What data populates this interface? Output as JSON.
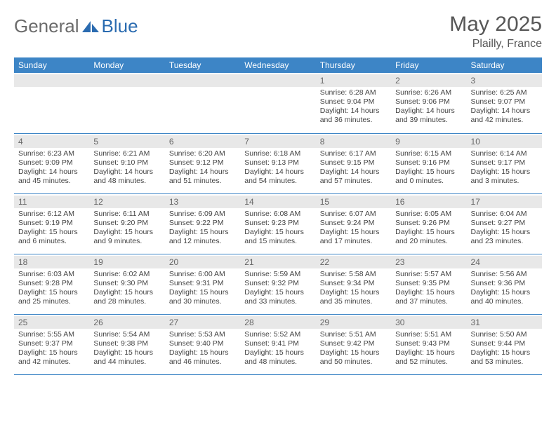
{
  "brand": {
    "part1": "General",
    "part2": "Blue"
  },
  "title": "May 2025",
  "location": "Plailly, France",
  "colors": {
    "header_bg": "#3d85c6",
    "header_fg": "#ffffff",
    "daynum_bg": "#e8e8e8",
    "daynum_fg": "#666666",
    "rule": "#3d85c6",
    "text": "#444444",
    "logo_gray": "#6b6b6b",
    "logo_blue": "#2a6bb0"
  },
  "weekdays": [
    "Sunday",
    "Monday",
    "Tuesday",
    "Wednesday",
    "Thursday",
    "Friday",
    "Saturday"
  ],
  "weeks": [
    [
      null,
      null,
      null,
      null,
      {
        "n": "1",
        "sr": "Sunrise: 6:28 AM",
        "ss": "Sunset: 9:04 PM",
        "d1": "Daylight: 14 hours",
        "d2": "and 36 minutes."
      },
      {
        "n": "2",
        "sr": "Sunrise: 6:26 AM",
        "ss": "Sunset: 9:06 PM",
        "d1": "Daylight: 14 hours",
        "d2": "and 39 minutes."
      },
      {
        "n": "3",
        "sr": "Sunrise: 6:25 AM",
        "ss": "Sunset: 9:07 PM",
        "d1": "Daylight: 14 hours",
        "d2": "and 42 minutes."
      }
    ],
    [
      {
        "n": "4",
        "sr": "Sunrise: 6:23 AM",
        "ss": "Sunset: 9:09 PM",
        "d1": "Daylight: 14 hours",
        "d2": "and 45 minutes."
      },
      {
        "n": "5",
        "sr": "Sunrise: 6:21 AM",
        "ss": "Sunset: 9:10 PM",
        "d1": "Daylight: 14 hours",
        "d2": "and 48 minutes."
      },
      {
        "n": "6",
        "sr": "Sunrise: 6:20 AM",
        "ss": "Sunset: 9:12 PM",
        "d1": "Daylight: 14 hours",
        "d2": "and 51 minutes."
      },
      {
        "n": "7",
        "sr": "Sunrise: 6:18 AM",
        "ss": "Sunset: 9:13 PM",
        "d1": "Daylight: 14 hours",
        "d2": "and 54 minutes."
      },
      {
        "n": "8",
        "sr": "Sunrise: 6:17 AM",
        "ss": "Sunset: 9:15 PM",
        "d1": "Daylight: 14 hours",
        "d2": "and 57 minutes."
      },
      {
        "n": "9",
        "sr": "Sunrise: 6:15 AM",
        "ss": "Sunset: 9:16 PM",
        "d1": "Daylight: 15 hours",
        "d2": "and 0 minutes."
      },
      {
        "n": "10",
        "sr": "Sunrise: 6:14 AM",
        "ss": "Sunset: 9:17 PM",
        "d1": "Daylight: 15 hours",
        "d2": "and 3 minutes."
      }
    ],
    [
      {
        "n": "11",
        "sr": "Sunrise: 6:12 AM",
        "ss": "Sunset: 9:19 PM",
        "d1": "Daylight: 15 hours",
        "d2": "and 6 minutes."
      },
      {
        "n": "12",
        "sr": "Sunrise: 6:11 AM",
        "ss": "Sunset: 9:20 PM",
        "d1": "Daylight: 15 hours",
        "d2": "and 9 minutes."
      },
      {
        "n": "13",
        "sr": "Sunrise: 6:09 AM",
        "ss": "Sunset: 9:22 PM",
        "d1": "Daylight: 15 hours",
        "d2": "and 12 minutes."
      },
      {
        "n": "14",
        "sr": "Sunrise: 6:08 AM",
        "ss": "Sunset: 9:23 PM",
        "d1": "Daylight: 15 hours",
        "d2": "and 15 minutes."
      },
      {
        "n": "15",
        "sr": "Sunrise: 6:07 AM",
        "ss": "Sunset: 9:24 PM",
        "d1": "Daylight: 15 hours",
        "d2": "and 17 minutes."
      },
      {
        "n": "16",
        "sr": "Sunrise: 6:05 AM",
        "ss": "Sunset: 9:26 PM",
        "d1": "Daylight: 15 hours",
        "d2": "and 20 minutes."
      },
      {
        "n": "17",
        "sr": "Sunrise: 6:04 AM",
        "ss": "Sunset: 9:27 PM",
        "d1": "Daylight: 15 hours",
        "d2": "and 23 minutes."
      }
    ],
    [
      {
        "n": "18",
        "sr": "Sunrise: 6:03 AM",
        "ss": "Sunset: 9:28 PM",
        "d1": "Daylight: 15 hours",
        "d2": "and 25 minutes."
      },
      {
        "n": "19",
        "sr": "Sunrise: 6:02 AM",
        "ss": "Sunset: 9:30 PM",
        "d1": "Daylight: 15 hours",
        "d2": "and 28 minutes."
      },
      {
        "n": "20",
        "sr": "Sunrise: 6:00 AM",
        "ss": "Sunset: 9:31 PM",
        "d1": "Daylight: 15 hours",
        "d2": "and 30 minutes."
      },
      {
        "n": "21",
        "sr": "Sunrise: 5:59 AM",
        "ss": "Sunset: 9:32 PM",
        "d1": "Daylight: 15 hours",
        "d2": "and 33 minutes."
      },
      {
        "n": "22",
        "sr": "Sunrise: 5:58 AM",
        "ss": "Sunset: 9:34 PM",
        "d1": "Daylight: 15 hours",
        "d2": "and 35 minutes."
      },
      {
        "n": "23",
        "sr": "Sunrise: 5:57 AM",
        "ss": "Sunset: 9:35 PM",
        "d1": "Daylight: 15 hours",
        "d2": "and 37 minutes."
      },
      {
        "n": "24",
        "sr": "Sunrise: 5:56 AM",
        "ss": "Sunset: 9:36 PM",
        "d1": "Daylight: 15 hours",
        "d2": "and 40 minutes."
      }
    ],
    [
      {
        "n": "25",
        "sr": "Sunrise: 5:55 AM",
        "ss": "Sunset: 9:37 PM",
        "d1": "Daylight: 15 hours",
        "d2": "and 42 minutes."
      },
      {
        "n": "26",
        "sr": "Sunrise: 5:54 AM",
        "ss": "Sunset: 9:38 PM",
        "d1": "Daylight: 15 hours",
        "d2": "and 44 minutes."
      },
      {
        "n": "27",
        "sr": "Sunrise: 5:53 AM",
        "ss": "Sunset: 9:40 PM",
        "d1": "Daylight: 15 hours",
        "d2": "and 46 minutes."
      },
      {
        "n": "28",
        "sr": "Sunrise: 5:52 AM",
        "ss": "Sunset: 9:41 PM",
        "d1": "Daylight: 15 hours",
        "d2": "and 48 minutes."
      },
      {
        "n": "29",
        "sr": "Sunrise: 5:51 AM",
        "ss": "Sunset: 9:42 PM",
        "d1": "Daylight: 15 hours",
        "d2": "and 50 minutes."
      },
      {
        "n": "30",
        "sr": "Sunrise: 5:51 AM",
        "ss": "Sunset: 9:43 PM",
        "d1": "Daylight: 15 hours",
        "d2": "and 52 minutes."
      },
      {
        "n": "31",
        "sr": "Sunrise: 5:50 AM",
        "ss": "Sunset: 9:44 PM",
        "d1": "Daylight: 15 hours",
        "d2": "and 53 minutes."
      }
    ]
  ]
}
